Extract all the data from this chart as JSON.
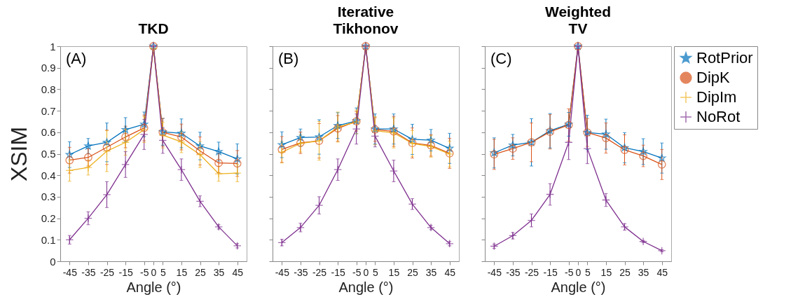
{
  "chart_data": [
    {
      "type": "line",
      "title": "TKD",
      "xlabel": "Angle (°)",
      "ylabel": "XSIM",
      "annotations": [
        "(A)"
      ],
      "legend": "top right",
      "line_style": "solid",
      "x": [
        -45,
        -35,
        -25,
        -15,
        -5,
        0,
        5,
        15,
        25,
        35,
        45
      ],
      "xlim": [
        -50,
        50
      ],
      "xticks": [
        -45,
        -35,
        -25,
        -15,
        -5,
        0,
        5,
        15,
        25,
        35,
        45
      ],
      "ylim": [
        0,
        1
      ],
      "yticks": [
        0,
        0.1,
        0.2,
        0.3,
        0.4,
        0.5,
        0.6,
        0.7,
        0.8,
        0.9,
        1
      ],
      "series": [
        {
          "name": "RotPrior",
          "color": "#0072bd",
          "marker": "star",
          "values": [
            0.496,
            0.536,
            0.553,
            0.612,
            0.637,
            1,
            0.602,
            0.595,
            0.536,
            0.51,
            0.476
          ],
          "errors": [
            0.06,
            0.035,
            0.09,
            0.056,
            0.057,
            null,
            0.062,
            0.067,
            0.064,
            0.044,
            0.07
          ]
        },
        {
          "name": "DipK",
          "color": "#d95319",
          "marker": "circle",
          "values": [
            0.47,
            0.483,
            0.53,
            0.578,
            0.62,
            1,
            0.6,
            0.578,
            0.513,
            0.457,
            0.455
          ],
          "errors": [
            0.06,
            0.04,
            0.08,
            0.05,
            0.06,
            null,
            0.065,
            0.06,
            0.065,
            0.045,
            0.06
          ]
        },
        {
          "name": "DipIm",
          "color": "#edb120",
          "marker": "cross",
          "values": [
            0.422,
            0.436,
            0.512,
            0.553,
            0.612,
            0.99,
            0.587,
            0.555,
            0.496,
            0.407,
            0.41
          ],
          "errors": [
            0.05,
            0.035,
            0.095,
            0.06,
            0.06,
            null,
            0.06,
            0.05,
            0.06,
            0.035,
            0.04
          ]
        },
        {
          "name": "NoRot",
          "color": "#7e2f8e",
          "marker": "cross",
          "values": [
            0.1,
            0.2,
            0.31,
            0.45,
            0.59,
            1,
            0.562,
            0.426,
            0.279,
            0.16,
            0.072
          ],
          "errors": [
            0.02,
            0.03,
            0.06,
            0.06,
            0.07,
            null,
            0.06,
            0.05,
            0.025,
            0.01,
            0.01
          ]
        }
      ]
    },
    {
      "type": "line",
      "title": "Iterative\nTikhonov",
      "xlabel": "Angle (°)",
      "annotations": [
        "(B)"
      ],
      "legend": "top right",
      "tick_labels": "x",
      "line_style": "solid",
      "x": [
        -45,
        -35,
        -25,
        -15,
        -5,
        0,
        5,
        15,
        25,
        35,
        45
      ],
      "xlim": [
        -50,
        50
      ],
      "xticks": [
        -45,
        -35,
        -25,
        -15,
        -5,
        0,
        5,
        15,
        25,
        35,
        45
      ],
      "ylim": [
        0,
        1
      ],
      "yticks": [
        0,
        0.1,
        0.2,
        0.3,
        0.4,
        0.5,
        0.6,
        0.7,
        0.8,
        0.9,
        1
      ],
      "series": [
        {
          "name": "RotPrior",
          "color": "#0072bd",
          "marker": "star",
          "values": [
            0.542,
            0.575,
            0.578,
            0.631,
            0.653,
            1,
            0.615,
            0.615,
            0.567,
            0.563,
            0.525
          ],
          "errors": [
            0.06,
            0.04,
            0.08,
            0.06,
            0.06,
            null,
            0.07,
            0.07,
            0.07,
            0.05,
            0.07
          ]
        },
        {
          "name": "DipK",
          "color": "#d95319",
          "marker": "circle",
          "values": [
            0.52,
            0.551,
            0.56,
            0.618,
            0.651,
            1,
            0.613,
            0.604,
            0.55,
            0.539,
            0.502
          ],
          "errors": [
            0.06,
            0.05,
            0.08,
            0.06,
            0.045,
            null,
            0.055,
            0.07,
            0.07,
            0.05,
            0.07
          ]
        },
        {
          "name": "DipIm",
          "color": "#edb120",
          "marker": "cross",
          "values": [
            0.507,
            0.548,
            0.56,
            0.624,
            0.648,
            1,
            0.607,
            0.597,
            0.548,
            0.534,
            0.499
          ],
          "errors": [
            0.05,
            0.04,
            0.09,
            0.07,
            0.055,
            null,
            0.065,
            0.07,
            0.06,
            0.05,
            0.06
          ]
        },
        {
          "name": "NoRot",
          "color": "#7e2f8e",
          "marker": "cross",
          "values": [
            0.087,
            0.157,
            0.26,
            0.426,
            0.615,
            1,
            0.582,
            0.42,
            0.266,
            0.157,
            0.082
          ],
          "errors": [
            0.015,
            0.02,
            0.04,
            0.05,
            0.07,
            null,
            0.05,
            0.05,
            0.025,
            0.01,
            0.01
          ]
        }
      ]
    },
    {
      "type": "line",
      "title": "Weighted\nTV",
      "xlabel": "Angle (°)",
      "annotations": [
        "(C)"
      ],
      "legend": "top right",
      "tick_labels": "x",
      "line_style": "solid",
      "x": [
        -45,
        -35,
        -25,
        -15,
        -5,
        0,
        5,
        15,
        25,
        35,
        45
      ],
      "xlim": [
        -50,
        50
      ],
      "xticks": [
        -45,
        -35,
        -25,
        -15,
        -5,
        0,
        5,
        15,
        25,
        35,
        45
      ],
      "ylim": [
        0,
        1
      ],
      "yticks": [
        0,
        0.1,
        0.2,
        0.3,
        0.4,
        0.5,
        0.6,
        0.7,
        0.8,
        0.9,
        1
      ],
      "series": [
        {
          "name": "RotPrior",
          "color": "#0072bd",
          "marker": "star",
          "values": [
            0.504,
            0.54,
            0.553,
            0.607,
            0.637,
            1,
            0.599,
            0.591,
            0.528,
            0.51,
            0.48
          ],
          "errors": [
            0.07,
            0.05,
            0.11,
            0.08,
            0.055,
            null,
            0.08,
            0.07,
            0.07,
            0.06,
            0.07
          ]
        },
        {
          "name": "DipK",
          "color": "#d95319",
          "marker": "circle",
          "values": [
            0.497,
            0.524,
            0.553,
            0.602,
            0.634,
            1,
            0.599,
            0.573,
            0.518,
            0.49,
            0.45
          ],
          "errors": [
            0.07,
            0.05,
            0.09,
            0.08,
            0.075,
            null,
            0.065,
            0.07,
            0.07,
            0.05,
            0.07
          ]
        },
        {
          "name": "DipIm",
          "color": "#edb120",
          "marker": "cross",
          "values": [
            null,
            null,
            null,
            null,
            null,
            null,
            null,
            null,
            null,
            null,
            null
          ]
        },
        {
          "name": "NoRot",
          "color": "#7e2f8e",
          "marker": "cross",
          "values": [
            0.07,
            0.119,
            0.19,
            0.311,
            0.553,
            1,
            0.524,
            0.285,
            0.16,
            0.092,
            0.049
          ],
          "errors": [
            0.01,
            0.015,
            0.03,
            0.05,
            0.08,
            null,
            0.07,
            0.03,
            0.015,
            0.005,
            0.005
          ]
        }
      ]
    }
  ]
}
